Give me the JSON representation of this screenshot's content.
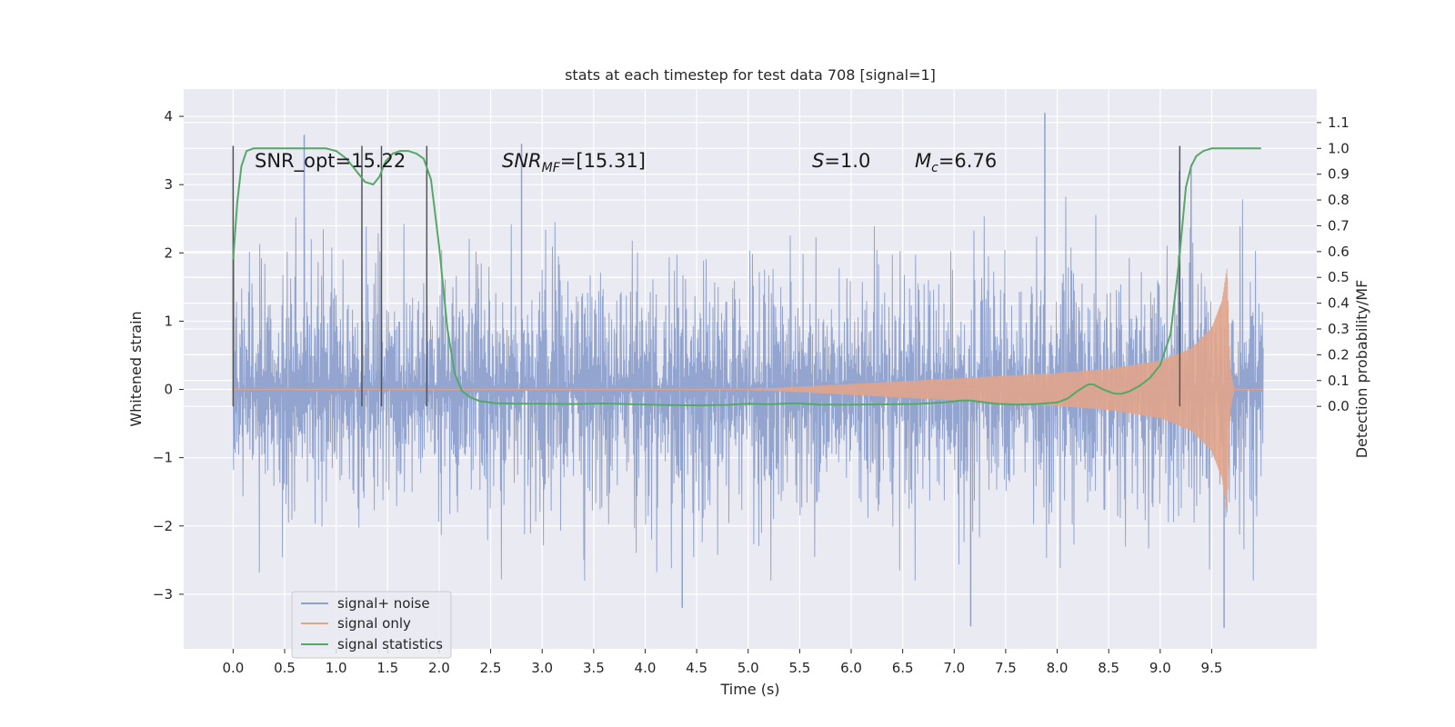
{
  "chart_data": {
    "type": "line",
    "title": "stats at each timestep for test data 708 [signal=1]",
    "xlabel": "Time (s)",
    "ylabel": "Whitened strain",
    "ylabel_right": "Detection probability/MF",
    "xlim": [
      -0.48,
      10.52
    ],
    "ylim": [
      -3.8,
      4.4
    ],
    "ylim_right": [
      -0.94,
      1.23
    ],
    "xticks": [
      "0.0",
      "0.5",
      "1.0",
      "1.5",
      "2.0",
      "2.5",
      "3.0",
      "3.5",
      "4.0",
      "4.5",
      "5.0",
      "5.5",
      "6.0",
      "6.5",
      "7.0",
      "7.5",
      "8.0",
      "8.5",
      "9.0",
      "9.5"
    ],
    "yticks": [
      "−3",
      "−2",
      "−1",
      "0",
      "1",
      "2",
      "3",
      "4"
    ],
    "yticks_right": [
      "0.0",
      "0.1",
      "0.2",
      "0.3",
      "0.4",
      "0.5",
      "0.6",
      "0.7",
      "0.8",
      "0.9",
      "1.0",
      "1.1"
    ],
    "annotations": {
      "snr_opt": "SNR_opt=15.22",
      "snr_mf_name": "SNR",
      "snr_mf_sub": "MF",
      "snr_mf_value": "=[15.31]",
      "s_name": "S",
      "s_value": "=1.0",
      "mc_name": "M",
      "mc_sub": "c",
      "mc_value": "=6.76"
    },
    "vertical_markers_x": [
      0.0,
      1.25,
      1.44,
      1.88,
      9.19
    ],
    "series": [
      {
        "name": "signal+ noise",
        "color": "#8ea1cc",
        "description_range": [
          0.0,
          10.0
        ],
        "typical_amplitude": 1.3,
        "peaks": [
          [
            0.69,
            3.73
          ],
          [
            7.88,
            4.05
          ],
          [
            4.36,
            -3.2
          ],
          [
            7.16,
            -3.47
          ],
          [
            9.62,
            -3.49
          ],
          [
            2.8,
            3.6
          ],
          [
            9.3,
            3.3
          ]
        ]
      },
      {
        "name": "signal only",
        "color": "#e1a58b",
        "envelope": [
          [
            0.0,
            0.0
          ],
          [
            5.0,
            0.0
          ],
          [
            6.0,
            0.08
          ],
          [
            7.0,
            0.16
          ],
          [
            8.0,
            0.24
          ],
          [
            8.5,
            0.3
          ],
          [
            9.0,
            0.42
          ],
          [
            9.3,
            0.6
          ],
          [
            9.5,
            0.9
          ],
          [
            9.6,
            1.3
          ],
          [
            9.65,
            1.8
          ],
          [
            9.68,
            0.3
          ],
          [
            9.72,
            0.0
          ],
          [
            10.0,
            0.0
          ]
        ]
      },
      {
        "name": "signal statistics",
        "color": "#55a868",
        "axis": "right",
        "x": [
          0.0,
          0.04,
          0.08,
          0.13,
          0.2,
          0.3,
          0.45,
          0.6,
          0.75,
          0.9,
          1.0,
          1.1,
          1.2,
          1.28,
          1.36,
          1.42,
          1.48,
          1.55,
          1.62,
          1.7,
          1.78,
          1.85,
          1.92,
          2.0,
          2.08,
          2.15,
          2.22,
          2.3,
          2.4,
          2.55,
          2.75,
          3.0,
          3.3,
          3.6,
          3.9,
          4.2,
          4.5,
          4.8,
          5.0,
          5.2,
          5.45,
          5.7,
          6.0,
          6.3,
          6.6,
          6.9,
          7.05,
          7.15,
          7.25,
          7.4,
          7.6,
          7.8,
          8.0,
          8.1,
          8.2,
          8.3,
          8.35,
          8.45,
          8.55,
          8.62,
          8.7,
          8.8,
          8.9,
          9.0,
          9.1,
          9.18,
          9.25,
          9.3,
          9.35,
          9.42,
          9.5,
          9.6,
          9.75,
          9.9,
          9.98
        ],
        "y": [
          0.57,
          0.79,
          0.93,
          0.99,
          1.0,
          1.0,
          1.0,
          1.0,
          1.0,
          1.0,
          0.99,
          0.96,
          0.91,
          0.87,
          0.86,
          0.89,
          0.95,
          0.98,
          0.99,
          0.99,
          0.98,
          0.96,
          0.88,
          0.62,
          0.3,
          0.13,
          0.06,
          0.035,
          0.02,
          0.012,
          0.01,
          0.01,
          0.009,
          0.011,
          0.008,
          0.005,
          0.004,
          0.006,
          0.01,
          0.008,
          0.012,
          0.007,
          0.007,
          0.008,
          0.009,
          0.015,
          0.022,
          0.023,
          0.018,
          0.01,
          0.007,
          0.009,
          0.015,
          0.03,
          0.06,
          0.085,
          0.085,
          0.065,
          0.05,
          0.048,
          0.058,
          0.08,
          0.11,
          0.16,
          0.28,
          0.55,
          0.85,
          0.93,
          0.97,
          0.99,
          1.0,
          1.0,
          1.0,
          1.0,
          1.0
        ]
      }
    ],
    "legend": {
      "placement": "lower-left",
      "entries": [
        "signal+ noise",
        "signal only",
        "signal statistics"
      ]
    },
    "grid": true,
    "colors": {
      "background": "#eaeaf2",
      "grid": "#ffffff",
      "markers": "#555555"
    }
  }
}
